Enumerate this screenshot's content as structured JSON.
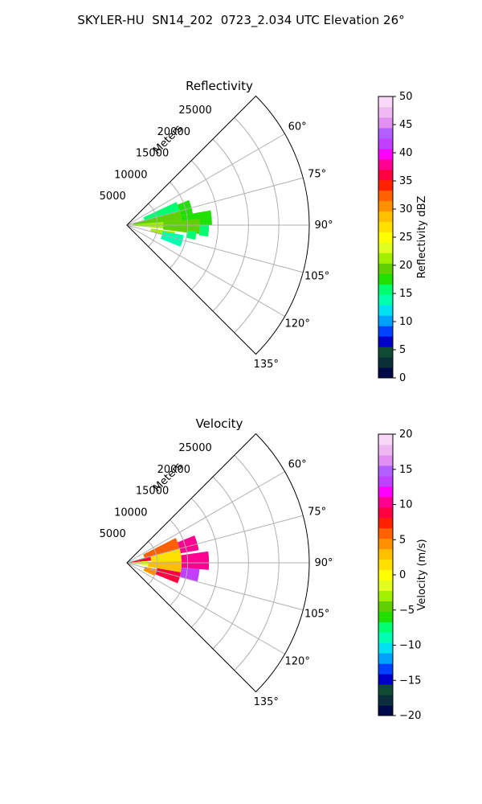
{
  "figure": {
    "title": "SKYLER-HU  SN14_202  0723_2.034 UTC Elevation 26°"
  },
  "chart_data": [
    {
      "type": "heatmap",
      "projection": "polar-sector",
      "title": "Reflectivity",
      "radial_label": "Meters",
      "theta_range_deg": [
        45,
        135
      ],
      "r_max_m": 30000,
      "r_ticks": [
        5000,
        10000,
        15000,
        20000,
        25000
      ],
      "r_tick_labels": [
        "5000",
        "10000",
        "15000",
        "20000",
        "25000"
      ],
      "theta_ticks": [
        60,
        75,
        90,
        105,
        120,
        135
      ],
      "theta_tick_labels": [
        "60°",
        "75°",
        "90°",
        "105°",
        "120°",
        "135°"
      ],
      "grid": true,
      "colorbar": {
        "label": "Reflectivity dBZ",
        "range": [
          0,
          50
        ],
        "ticks": [
          0,
          5,
          10,
          15,
          20,
          25,
          30,
          35,
          40,
          45,
          50
        ],
        "tick_labels": [
          "0",
          "5",
          "10",
          "15",
          "20",
          "25",
          "30",
          "35",
          "40",
          "45",
          "50"
        ],
        "colors": [
          "#000a4a",
          "#0b2f3a",
          "#0f4a35",
          "#0000c8",
          "#0040ff",
          "#00a0ff",
          "#00e0f0",
          "#00ffb0",
          "#00ff70",
          "#20e000",
          "#60d000",
          "#a0f000",
          "#e0ff20",
          "#ffff00",
          "#ffe000",
          "#ffc000",
          "#ff9000",
          "#ff6000",
          "#ff2000",
          "#ff0040",
          "#ff0090",
          "#ff00ff",
          "#c040ff",
          "#b060ff",
          "#e090f0",
          "#f0b8f0",
          "#f8d8f8"
        ]
      },
      "cells": [
        {
          "theta": [
            65,
            75
          ],
          "r": [
            3000,
            9000
          ],
          "value": 16
        },
        {
          "theta": [
            68,
            80
          ],
          "r": [
            9000,
            11000
          ],
          "value": 18
        },
        {
          "theta": [
            75,
            85
          ],
          "r": [
            1000,
            9000
          ],
          "value": 20
        },
        {
          "theta": [
            80,
            90
          ],
          "r": [
            9000,
            14000
          ],
          "value": 17
        },
        {
          "theta": [
            85,
            95
          ],
          "r": [
            500,
            6000
          ],
          "value": 22
        },
        {
          "theta": [
            85,
            97
          ],
          "r": [
            6000,
            12000
          ],
          "value": 19
        },
        {
          "theta": [
            90,
            98
          ],
          "r": [
            12000,
            13500
          ],
          "value": 15
        },
        {
          "theta": [
            98,
            105
          ],
          "r": [
            4000,
            8000
          ],
          "value": 21
        },
        {
          "theta": [
            100,
            112
          ],
          "r": [
            6000,
            9500
          ],
          "value": 14
        },
        {
          "theta": [
            95,
            102
          ],
          "r": [
            10000,
            11500
          ],
          "value": 16
        }
      ]
    },
    {
      "type": "heatmap",
      "projection": "polar-sector",
      "title": "Velocity",
      "radial_label": "Meters",
      "theta_range_deg": [
        45,
        135
      ],
      "r_max_m": 30000,
      "r_ticks": [
        5000,
        10000,
        15000,
        20000,
        25000
      ],
      "r_tick_labels": [
        "5000",
        "10000",
        "15000",
        "20000",
        "25000"
      ],
      "theta_ticks": [
        60,
        75,
        90,
        105,
        120,
        135
      ],
      "theta_tick_labels": [
        "60°",
        "75°",
        "90°",
        "105°",
        "120°",
        "135°"
      ],
      "grid": true,
      "colorbar": {
        "label": "Velocity (m/s)",
        "range": [
          -20,
          20
        ],
        "ticks": [
          -20,
          -15,
          -10,
          -5,
          0,
          5,
          10,
          15,
          20
        ],
        "tick_labels": [
          "−20",
          "−15",
          "−10",
          "−5",
          "0",
          "5",
          "10",
          "15",
          "20"
        ],
        "colors": [
          "#000a4a",
          "#0b2f3a",
          "#0f4a35",
          "#0000c8",
          "#0040ff",
          "#00a0ff",
          "#00e0f0",
          "#00ffb0",
          "#00ff70",
          "#20e000",
          "#60d000",
          "#a0f000",
          "#e0ff20",
          "#ffff00",
          "#ffe000",
          "#ffc000",
          "#ff9000",
          "#ff6000",
          "#ff2000",
          "#ff0040",
          "#ff0090",
          "#ff00ff",
          "#c040ff",
          "#b060ff",
          "#e090f0",
          "#f0b8f0",
          "#f8d8f8"
        ]
      },
      "cells": [
        {
          "theta": [
            63,
            76
          ],
          "r": [
            3000,
            9000
          ],
          "value": 6
        },
        {
          "theta": [
            68,
            80
          ],
          "r": [
            9000,
            12000
          ],
          "value": 10
        },
        {
          "theta": [
            75,
            85
          ],
          "r": [
            600,
            4000
          ],
          "value": 9
        },
        {
          "theta": [
            75,
            88
          ],
          "r": [
            4000,
            9000
          ],
          "value": 2
        },
        {
          "theta": [
            82,
            95
          ],
          "r": [
            9000,
            13500
          ],
          "value": 11
        },
        {
          "theta": [
            85,
            98
          ],
          "r": [
            500,
            3500
          ],
          "value": -1
        },
        {
          "theta": [
            88,
            100
          ],
          "r": [
            3500,
            9000
          ],
          "value": 3
        },
        {
          "theta": [
            95,
            105
          ],
          "r": [
            9000,
            12000
          ],
          "value": 14
        },
        {
          "theta": [
            100,
            112
          ],
          "r": [
            5000,
            9000
          ],
          "value": 9
        },
        {
          "theta": [
            102,
            115
          ],
          "r": [
            3000,
            5000
          ],
          "value": 5
        }
      ]
    }
  ]
}
